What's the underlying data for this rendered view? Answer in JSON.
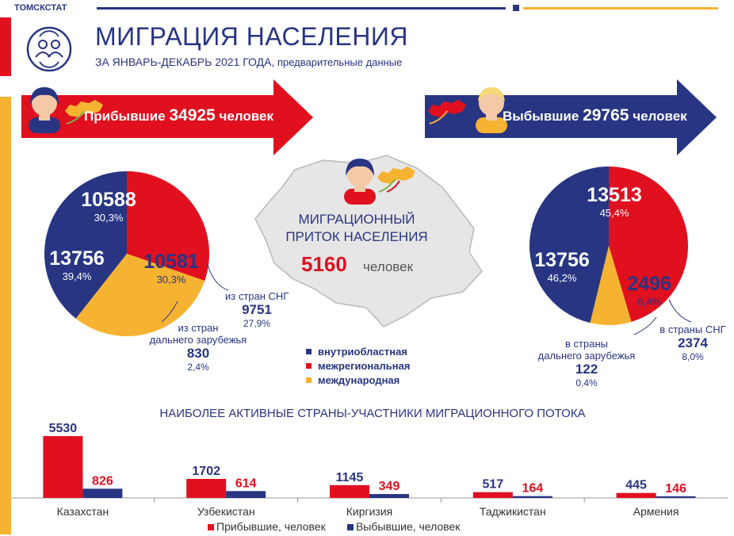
{
  "header": {
    "brand": "ТОМСКСТАТ",
    "title": "МИГРАЦИЯ НАСЕЛЕНИЯ",
    "subtitle_main": "ЗА ЯНВАРЬ-ДЕКАБРЬ 2021 ГОДА,",
    "subtitle_note": " предварительные данные"
  },
  "arrivals": {
    "label": "Прибывшие",
    "value": "34925",
    "unit": "человек",
    "interregional": {
      "value": "10588",
      "pct": "30,3%"
    },
    "intraregional": {
      "value": "13756",
      "pct": "39,4%"
    },
    "international": {
      "value": "10581",
      "pct": "30,3%"
    },
    "cis": {
      "label": "из стран СНГ",
      "value": "9751",
      "pct": "27,9%"
    },
    "far_abroad": {
      "label_line1": "из стран",
      "label_line2": "дальнего зарубежья",
      "value": "830",
      "pct": "2,4%"
    }
  },
  "departures": {
    "label": "Выбывшие",
    "value": "29765",
    "unit": "человек",
    "interregional": {
      "value": "13513",
      "pct": "45,4%"
    },
    "intraregional": {
      "value": "13756",
      "pct": "46,2%"
    },
    "international": {
      "value": "2496",
      "pct": "8,4%"
    },
    "cis": {
      "label": "в страны СНГ",
      "value": "2374",
      "pct": "8,0%"
    },
    "far_abroad": {
      "label_line1": "в страны",
      "label_line2": "дальнего зарубежья",
      "value": "122",
      "pct": "0,4%"
    }
  },
  "center": {
    "line1": "МИГРАЦИОННЫЙ",
    "line2": "ПРИТОК  НАСЕЛЕНИЯ",
    "value": "5160",
    "unit": "человек"
  },
  "legend": {
    "intra": "внутриобластная",
    "inter": "межрегиональная",
    "intl": "международная"
  },
  "colors": {
    "navy": "#283583",
    "red": "#e0101f",
    "yellow": "#f5b331"
  },
  "chart_data": [
    {
      "type": "pie",
      "slices": [
        {
          "name": "межрегиональная",
          "value": 10588,
          "label": "30,3%"
        },
        {
          "name": "международная",
          "value": 10581,
          "label": "30,3%"
        },
        {
          "name": "внутриобластная",
          "value": 13756,
          "label": "39,4%"
        }
      ]
    },
    {
      "type": "pie",
      "slices": [
        {
          "name": "межрегиональная",
          "value": 13513,
          "label": "45,4%"
        },
        {
          "name": "международная",
          "value": 2496,
          "label": "8,4%"
        },
        {
          "name": "внутриобластная",
          "value": 13756,
          "label": "46,2%"
        }
      ]
    },
    {
      "type": "bar",
      "title": "НАИБОЛЕЕ АКТИВНЫЕ СТРАНЫ-УЧАСТНИКИ МИГРАЦИОННОГО ПОТОКА",
      "categories": [
        "Казахстан",
        "Узбекистан",
        "Киргизия",
        "Таджикистан",
        "Армения"
      ],
      "series": [
        {
          "name": "Прибывшие, человек",
          "values": [
            5530,
            1702,
            1145,
            517,
            445
          ]
        },
        {
          "name": "Выбывшие, человек",
          "values": [
            826,
            614,
            349,
            164,
            146
          ]
        }
      ],
      "ylim": [
        0,
        5530
      ],
      "legend_position": "bottom"
    }
  ]
}
